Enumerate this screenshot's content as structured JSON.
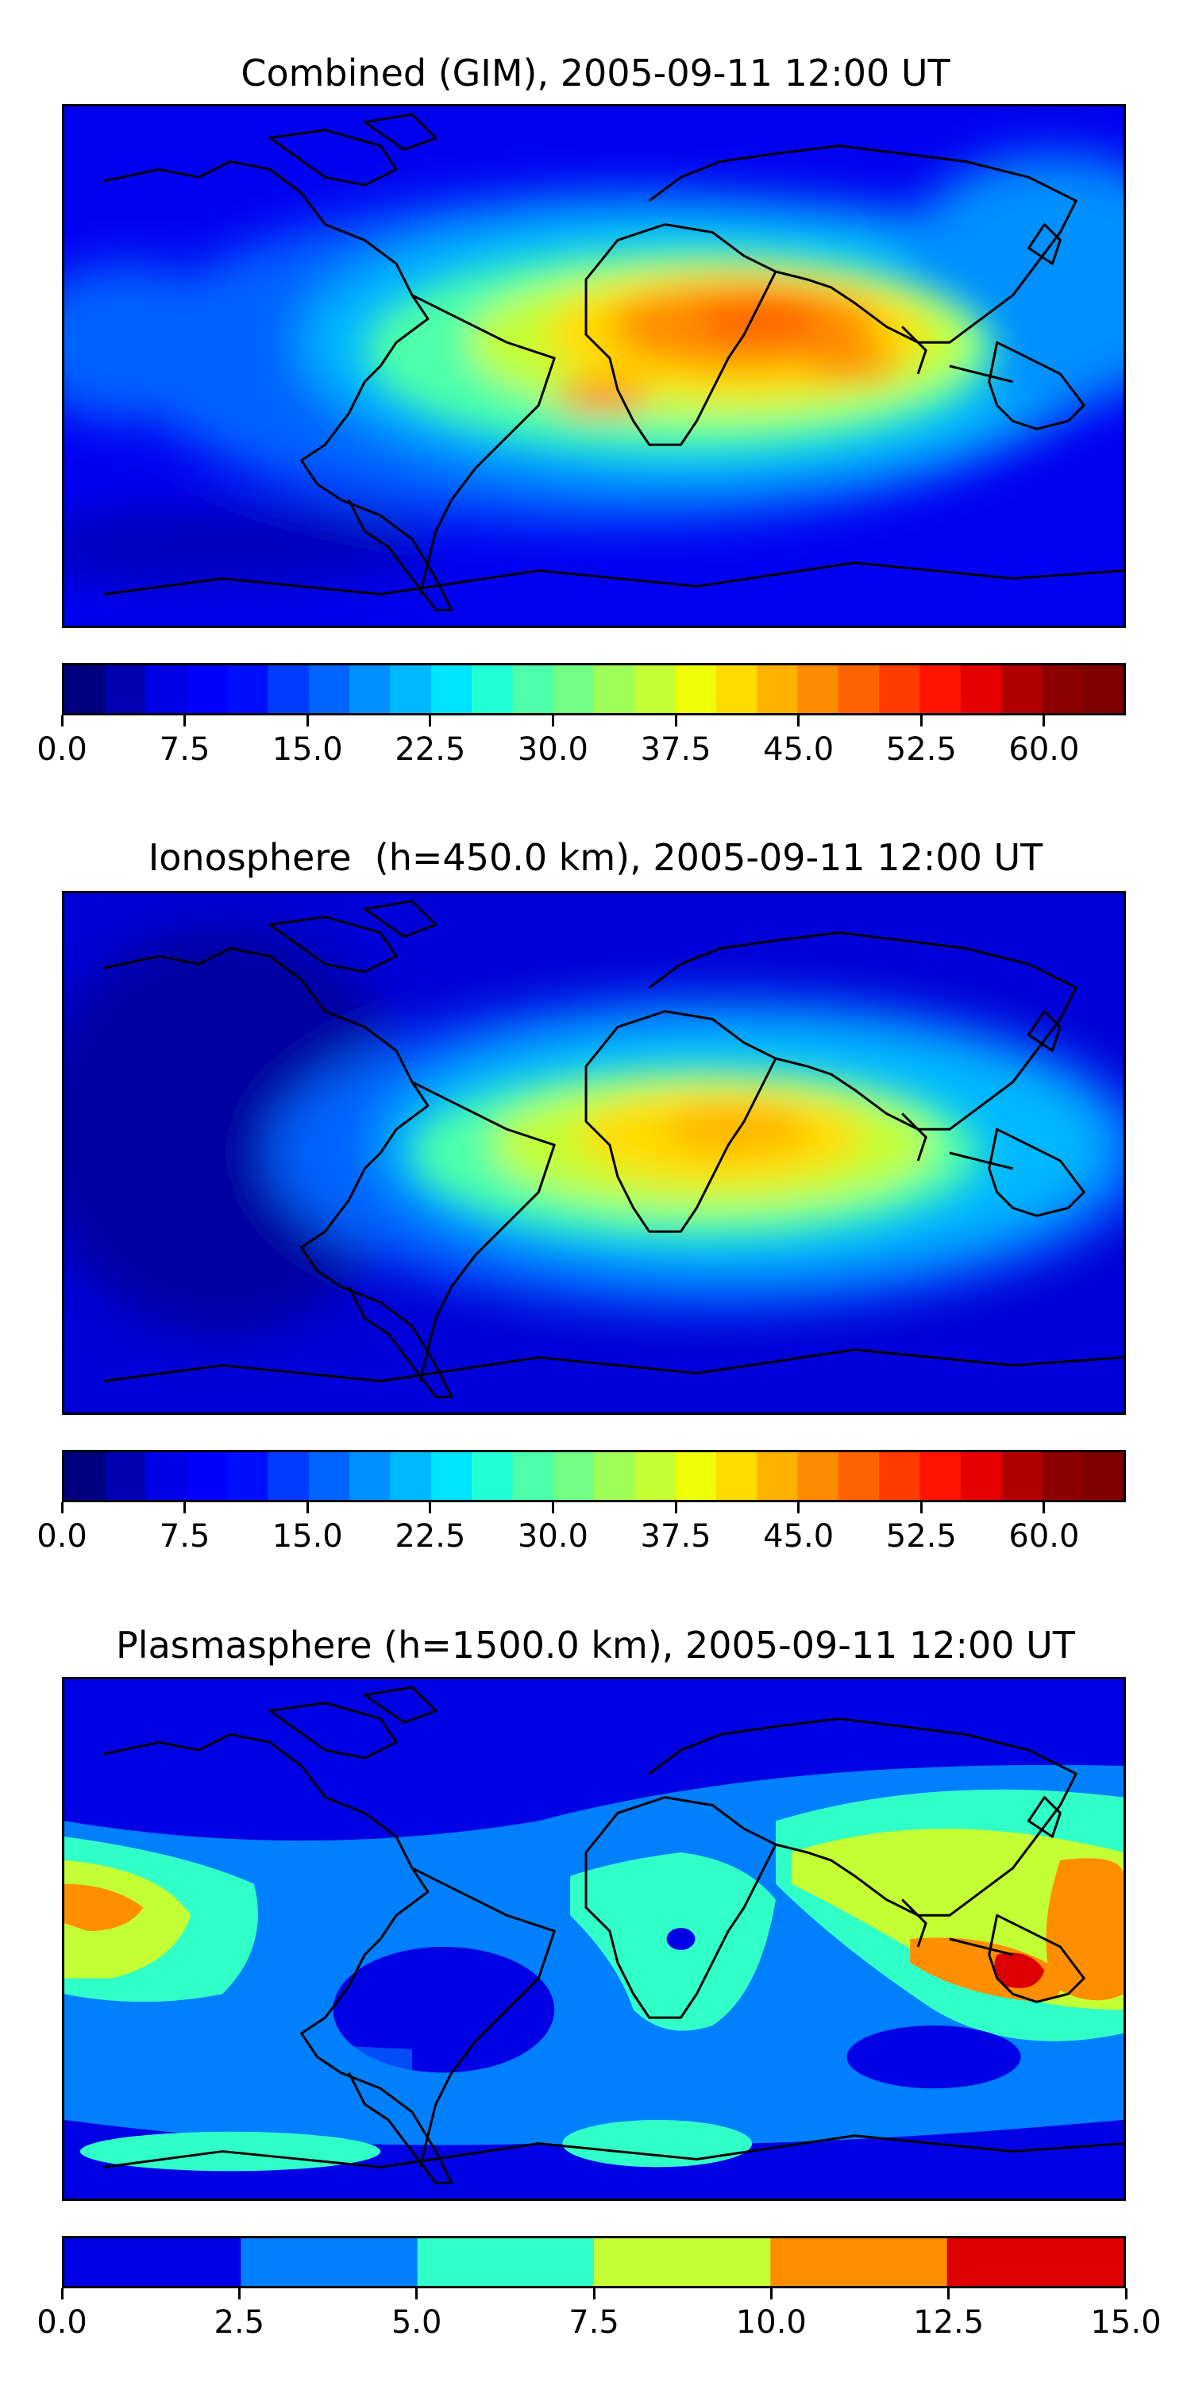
{
  "panels": [
    {
      "id": "combined",
      "title": "Combined (GIM), 2005-09-11 12:00 UT",
      "colorbar": {
        "levels": 26,
        "ticks": [
          "0.0",
          "7.5",
          "15.0",
          "22.5",
          "30.0",
          "37.5",
          "45.0",
          "52.5",
          "60.0"
        ],
        "tick_values": [
          0.0,
          7.5,
          15.0,
          22.5,
          30.0,
          37.5,
          45.0,
          52.5,
          60.0
        ],
        "range": [
          0.0,
          65.0
        ]
      }
    },
    {
      "id": "ionosphere",
      "title": "Ionosphere  (h=450.0 km), 2005-09-11 12:00 UT",
      "colorbar": {
        "levels": 26,
        "ticks": [
          "0.0",
          "7.5",
          "15.0",
          "22.5",
          "30.0",
          "37.5",
          "45.0",
          "52.5",
          "60.0"
        ],
        "tick_values": [
          0.0,
          7.5,
          15.0,
          22.5,
          30.0,
          37.5,
          45.0,
          52.5,
          60.0
        ],
        "range": [
          0.0,
          65.0
        ]
      }
    },
    {
      "id": "plasmasphere",
      "title": "Plasmasphere (h=1500.0 km), 2005-09-11 12:00 UT",
      "colorbar": {
        "levels": 6,
        "ticks": [
          "0.0",
          "2.5",
          "5.0",
          "7.5",
          "10.0",
          "12.5",
          "15.0"
        ],
        "tick_values": [
          0.0,
          2.5,
          5.0,
          7.5,
          10.0,
          12.5,
          15.0
        ],
        "range": [
          0.0,
          15.0
        ]
      }
    }
  ],
  "colors": {
    "jet": [
      "#00007f",
      "#0000b2",
      "#0000e5",
      "#0000ff",
      "#0010ff",
      "#003cff",
      "#0064ff",
      "#0090ff",
      "#00b8ff",
      "#00e4ff",
      "#21ffd6",
      "#4dffaa",
      "#72ff84",
      "#9eff59",
      "#c3ff34",
      "#efff08",
      "#ffdb00",
      "#ffb200",
      "#ff8c00",
      "#ff6300",
      "#ff3b00",
      "#ff1300",
      "#e50000",
      "#b20000",
      "#8c0000",
      "#7f0000"
    ],
    "plasma_levels": [
      "#0000e5",
      "#007fff",
      "#30ffc8",
      "#c3ff34",
      "#ff8f00",
      "#dd0000"
    ],
    "coastline": "#000000"
  }
}
